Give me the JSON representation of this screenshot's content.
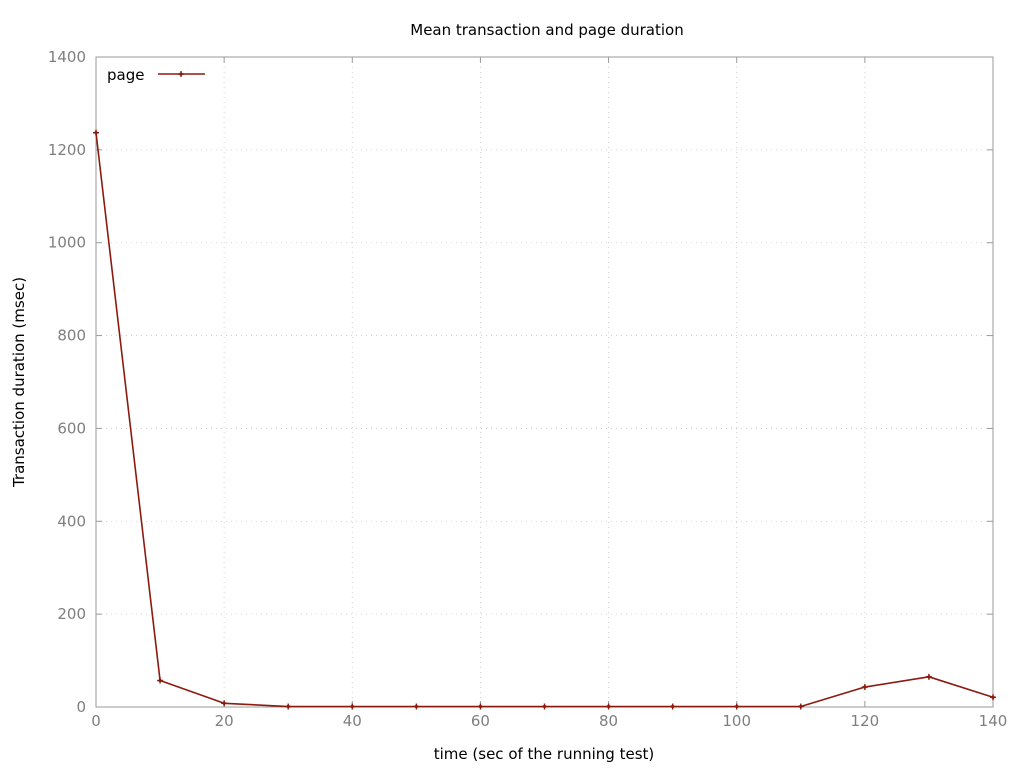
{
  "chart_data": {
    "type": "line",
    "title": "Mean transaction and page duration",
    "xlabel": "time (sec of the running test)",
    "ylabel": "Transaction duration (msec)",
    "xlim": [
      0,
      140
    ],
    "ylim": [
      0,
      1400
    ],
    "xticks": [
      0,
      20,
      40,
      60,
      80,
      100,
      120,
      140
    ],
    "yticks": [
      0,
      200,
      400,
      600,
      800,
      1000,
      1200,
      1400
    ],
    "grid": true,
    "legend_position": "top-left",
    "series": [
      {
        "name": "page",
        "color": "#8b1a10",
        "x": [
          0,
          10,
          20,
          30,
          40,
          50,
          60,
          70,
          80,
          90,
          100,
          110,
          120,
          130,
          140
        ],
        "y": [
          1237,
          57,
          8,
          1,
          1,
          1,
          1,
          1,
          1,
          1,
          1,
          1,
          43,
          65,
          21
        ]
      }
    ]
  }
}
